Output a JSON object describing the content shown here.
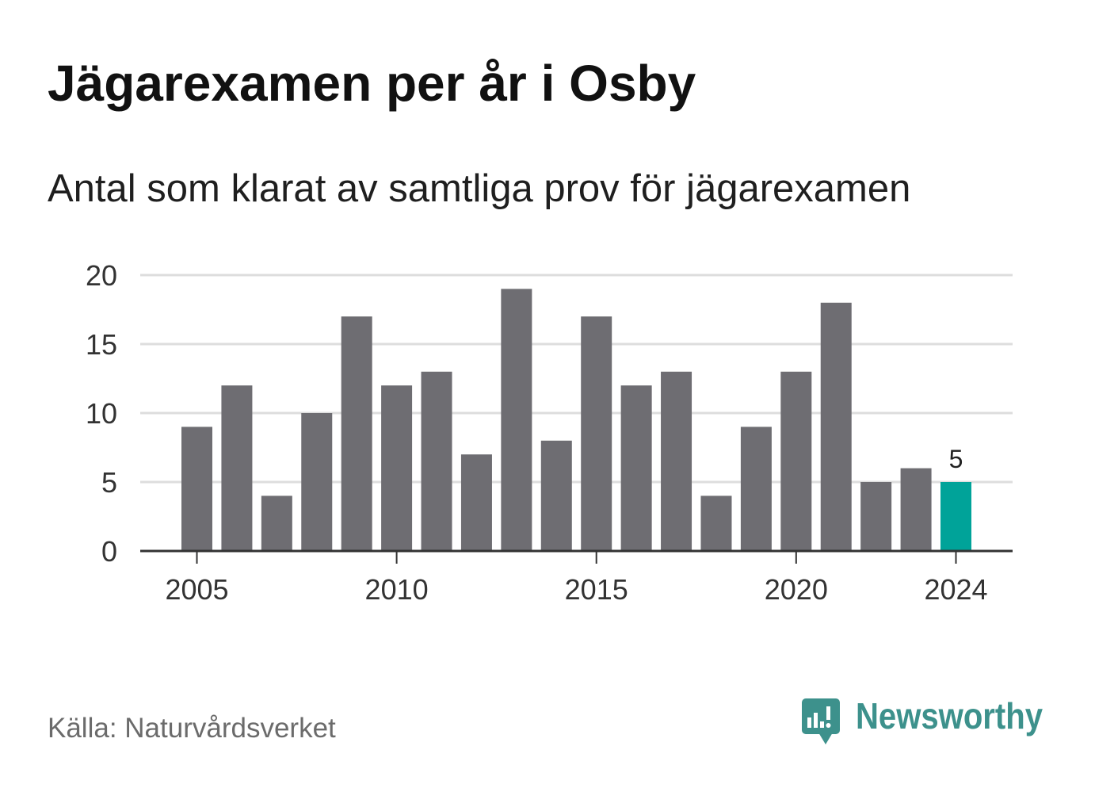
{
  "chart_data": {
    "type": "bar",
    "title": "Jägarexamen per år i Osby",
    "subtitle": "Antal som klarat av samtliga prov för jägarexamen",
    "xlabel": "",
    "ylabel": "",
    "x": [
      2005,
      2006,
      2007,
      2008,
      2009,
      2010,
      2011,
      2012,
      2013,
      2014,
      2015,
      2016,
      2017,
      2018,
      2019,
      2020,
      2021,
      2022,
      2023,
      2024
    ],
    "values": [
      9,
      12,
      4,
      10,
      17,
      12,
      13,
      7,
      19,
      8,
      17,
      12,
      13,
      4,
      9,
      13,
      18,
      5,
      6,
      5
    ],
    "x_ticks": [
      2005,
      2010,
      2015,
      2020,
      2024
    ],
    "y_ticks": [
      0,
      5,
      10,
      15,
      20
    ],
    "ylim": [
      0,
      20
    ],
    "grid": true,
    "legend": "none",
    "highlight_x": 2024,
    "data_labels_x": [
      2024
    ],
    "colors": {
      "bar": "#6e6d72",
      "highlight": "#00a399",
      "grid": "#dddddd",
      "axis": "#333333"
    }
  },
  "footer": {
    "source": "Källa: Naturvårdsverket"
  },
  "brand": {
    "name": "Newsworthy",
    "icon": "newsworthy-logo-icon",
    "color": "#3d918c"
  }
}
